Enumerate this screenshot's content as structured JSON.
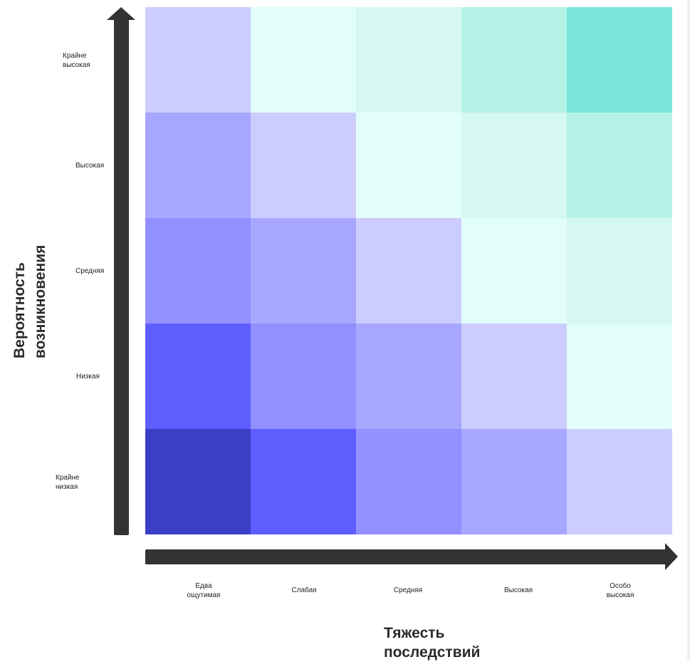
{
  "chart_data": {
    "type": "heatmap",
    "title": "",
    "xlabel_lines": [
      "Тяжесть",
      "последствий"
    ],
    "ylabel_lines": [
      "Вероятность",
      "возникновения"
    ],
    "x_categories": [
      [
        "Едва",
        "ощутимая"
      ],
      [
        "Слабая"
      ],
      [
        "Средняя"
      ],
      [
        "Высокая"
      ],
      [
        "Особо",
        "высокая"
      ]
    ],
    "y_categories_top_to_bottom": [
      [
        "Крайне",
        "высокая"
      ],
      [
        "Высокая"
      ],
      [
        "Средняя"
      ],
      [
        "Низкая"
      ],
      [
        "Крайне",
        "низкая"
      ]
    ],
    "cell_colors_top_to_bottom": [
      [
        "#cccdfe",
        "#e2fefa",
        "#d5f8f1",
        "#b5f3e9",
        "#78e5d8"
      ],
      [
        "#a7a7ff",
        "#cccdfe",
        "#e2fefa",
        "#d5f8f1",
        "#b5f3e9"
      ],
      [
        "#9290ff",
        "#a7a7ff",
        "#cccdfe",
        "#e2fefa",
        "#d5f8f1"
      ],
      [
        "#605dff",
        "#9290ff",
        "#a7a7ff",
        "#cccdfe",
        "#e2fefa"
      ],
      [
        "#3a3fc6",
        "#605dff",
        "#9290ff",
        "#a7a7ff",
        "#cccdfe"
      ]
    ],
    "axis_color": "#333333"
  }
}
